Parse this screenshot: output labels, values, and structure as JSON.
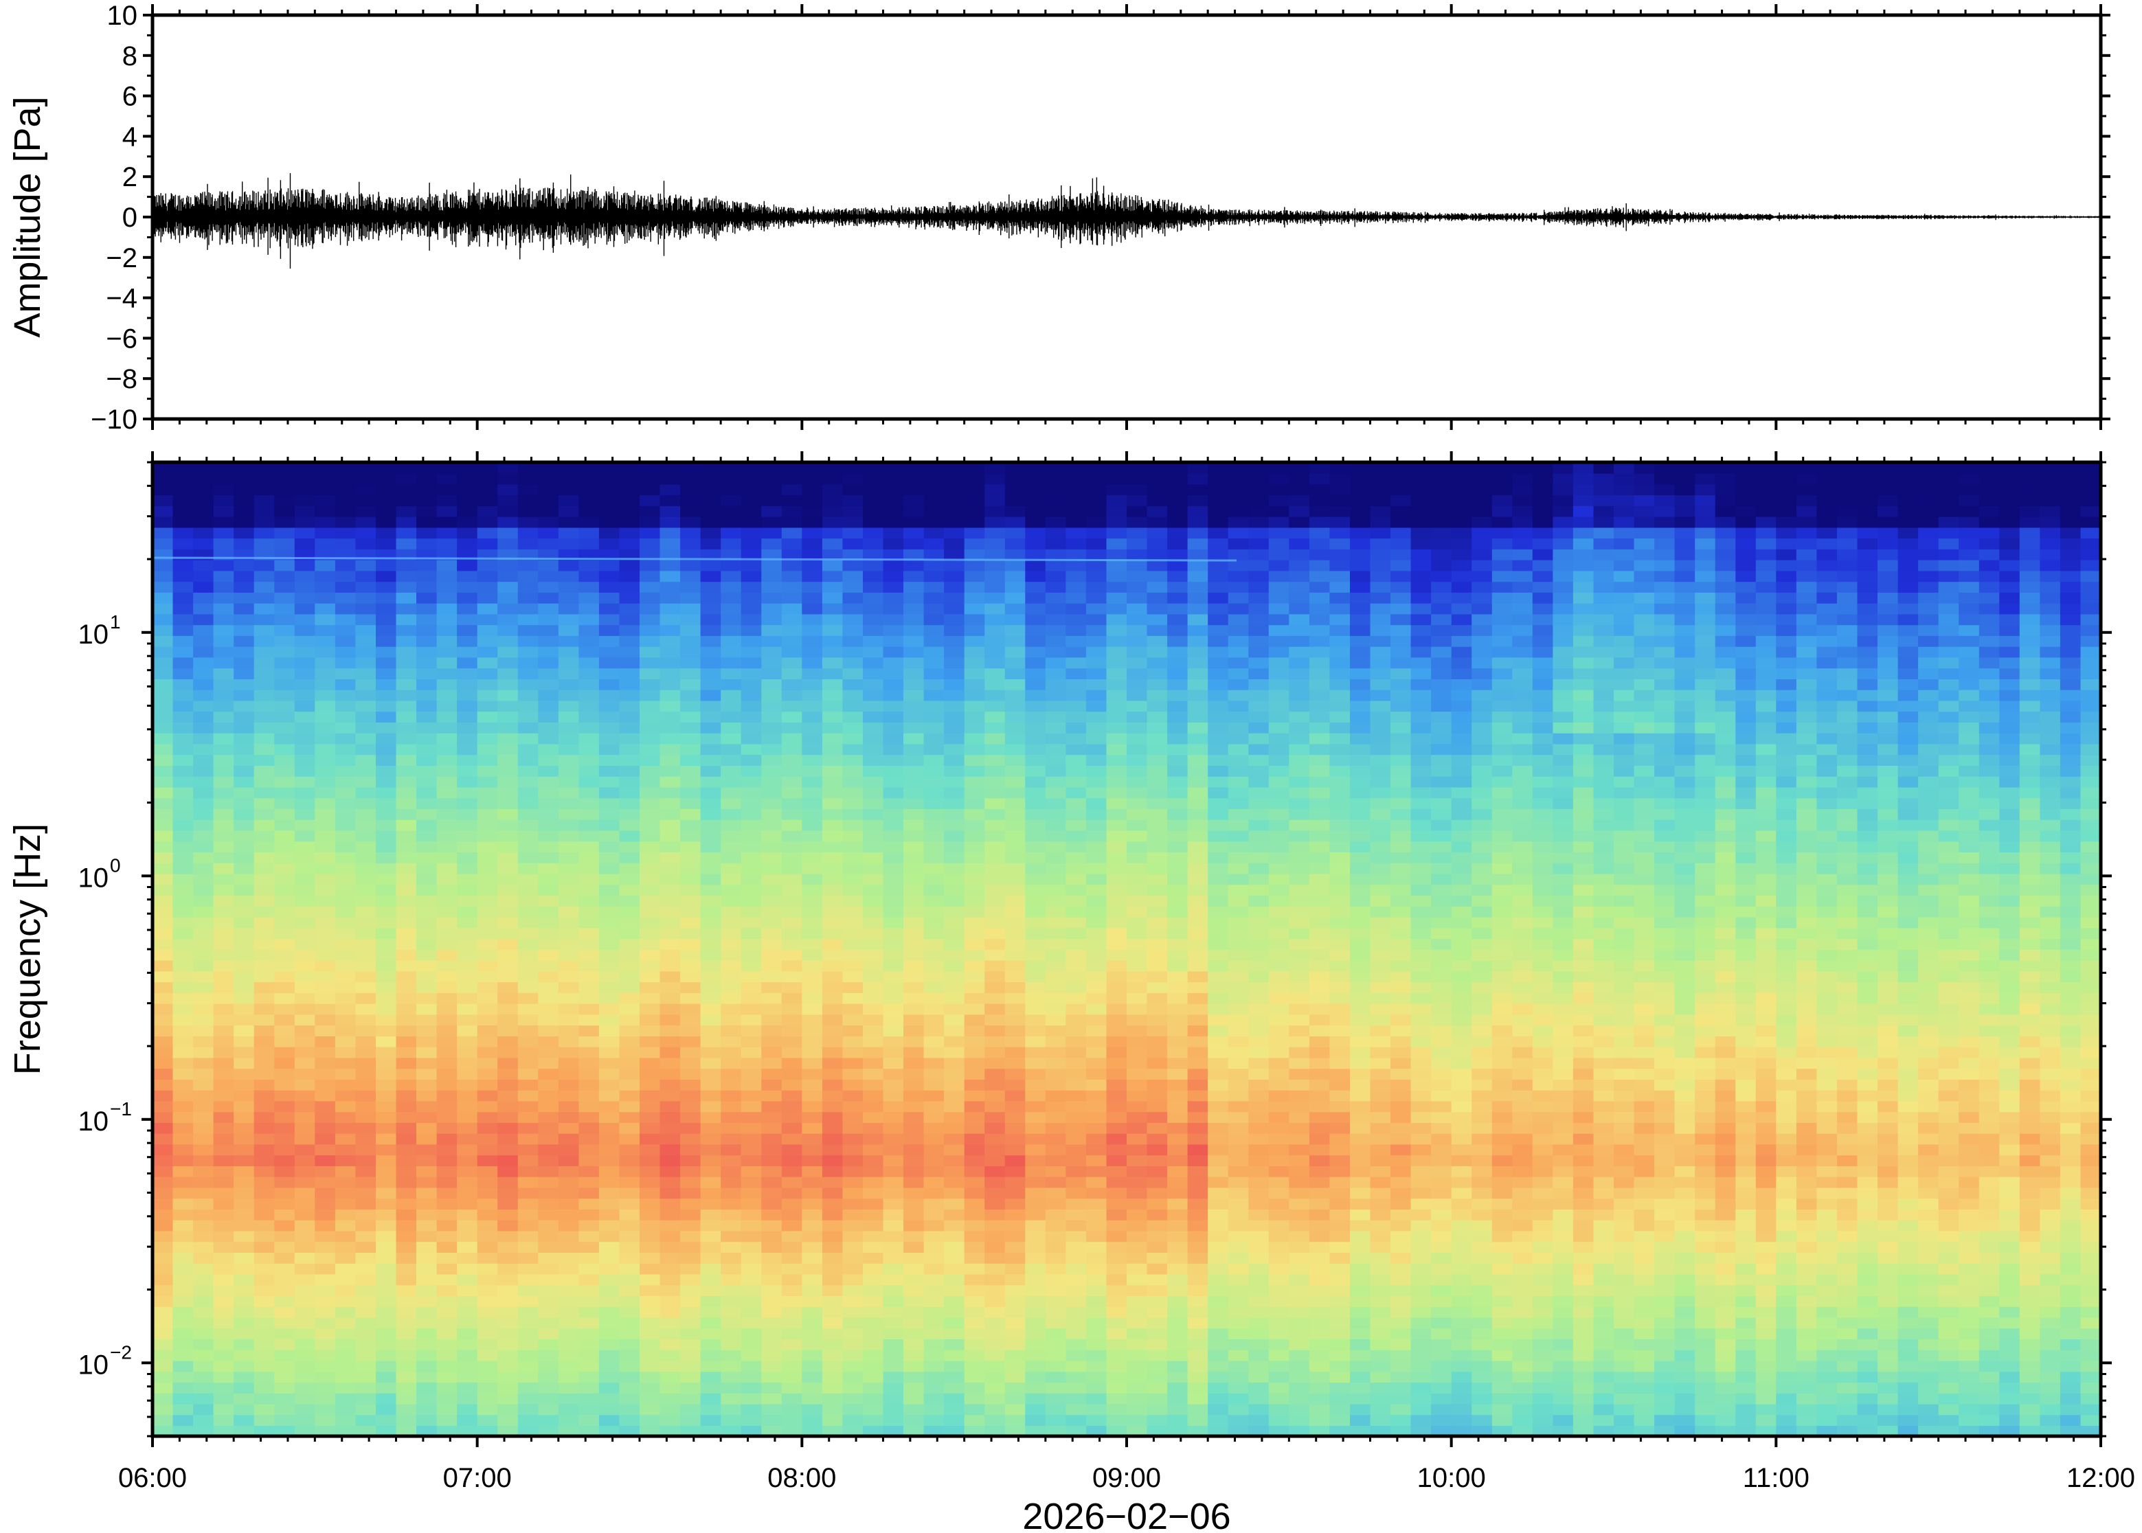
{
  "chart_data": [
    {
      "type": "line",
      "panel": "waveform",
      "ylabel": "Amplitude [Pa]",
      "ylim": [
        -10,
        10
      ],
      "yticks": [
        10,
        8,
        6,
        4,
        2,
        0,
        -2,
        -4,
        -6,
        -8,
        -10
      ],
      "ytick_labels": [
        "10",
        "8",
        "6",
        "4",
        "2",
        "0",
        "−2",
        "−4",
        "−6",
        "−8",
        "−10"
      ],
      "x_time_range": [
        "06:00",
        "12:00"
      ],
      "envelope_hours": [
        6.0,
        6.25,
        6.5,
        6.75,
        7.0,
        7.25,
        7.5,
        7.75,
        8.0,
        8.25,
        8.5,
        8.75,
        8.9,
        9.1,
        9.25,
        9.5,
        9.75,
        10.0,
        10.25,
        10.5,
        10.75,
        11.0,
        11.25,
        11.5,
        11.75,
        12.0
      ],
      "envelope_amplitude_pa": [
        1.2,
        1.3,
        1.5,
        1.0,
        1.4,
        1.5,
        1.3,
        0.9,
        0.4,
        0.5,
        0.6,
        1.0,
        1.3,
        1.0,
        0.4,
        0.35,
        0.3,
        0.2,
        0.2,
        0.5,
        0.25,
        0.15,
        0.12,
        0.1,
        0.07,
        0.05
      ],
      "line_color": "#000000"
    },
    {
      "type": "heatmap",
      "panel": "spectrogram",
      "ylabel": "Frequency [Hz]",
      "yscale": "log",
      "ylim": [
        0.005,
        50
      ],
      "yticks": [
        {
          "base": "10",
          "exp": "1",
          "value": 10
        },
        {
          "base": "10",
          "exp": "0",
          "value": 1
        },
        {
          "base": "10",
          "exp": "−1",
          "value": 0.1
        },
        {
          "base": "10",
          "exp": "−2",
          "value": 0.01
        }
      ],
      "xlabel": "2026−02−06",
      "xticks": [
        "06:00",
        "07:00",
        "08:00",
        "09:00",
        "10:00",
        "11:00",
        "12:00"
      ],
      "colormap": [
        "#0d0a7a",
        "#1f2fd8",
        "#3fa2ee",
        "#6ddfc9",
        "#b7f08e",
        "#f4e680",
        "#f9a65a",
        "#ef5a52",
        "#f28a8a"
      ],
      "peak_energy_frequency_hz": 0.07,
      "peak_energy_time_range": [
        "06:00",
        "09:15"
      ],
      "narrowband_line_hz": 20
    }
  ]
}
